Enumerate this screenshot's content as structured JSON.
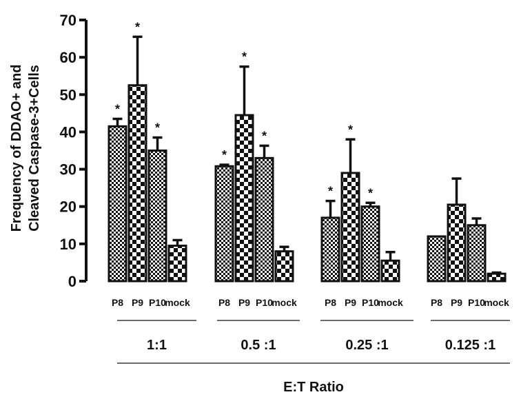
{
  "chart_data": {
    "type": "bar",
    "ylabel_line1": "Frequency of DDAO+ and",
    "ylabel_line2": "Cleaved Caspase-3+Cells",
    "xlabel": "E:T Ratio",
    "ylim": [
      0,
      70
    ],
    "yticks": [
      0,
      10,
      20,
      30,
      40,
      50,
      60,
      70
    ],
    "categories": [
      "P8",
      "P9",
      "P10",
      "mock"
    ],
    "groups": [
      {
        "label": "1:1",
        "bars": [
          {
            "category": "P8",
            "value": 41.5,
            "error": 2,
            "significant": true
          },
          {
            "category": "P9",
            "value": 52.5,
            "error": 13,
            "significant": true
          },
          {
            "category": "P10",
            "value": 35,
            "error": 3.5,
            "significant": true
          },
          {
            "category": "mock",
            "value": 9.5,
            "error": 1.5,
            "significant": false
          }
        ]
      },
      {
        "label": "0.5 :1",
        "bars": [
          {
            "category": "P8",
            "value": 30.8,
            "error": 0.4,
            "significant": true
          },
          {
            "category": "P9",
            "value": 44.5,
            "error": 13,
            "significant": true
          },
          {
            "category": "P10",
            "value": 33,
            "error": 3.3,
            "significant": true
          },
          {
            "category": "mock",
            "value": 8,
            "error": 1.2,
            "significant": false
          }
        ]
      },
      {
        "label": "0.25 :1",
        "bars": [
          {
            "category": "P8",
            "value": 17,
            "error": 4.5,
            "significant": true
          },
          {
            "category": "P9",
            "value": 29,
            "error": 9,
            "significant": true
          },
          {
            "category": "P10",
            "value": 20,
            "error": 1,
            "significant": true
          },
          {
            "category": "mock",
            "value": 5.5,
            "error": 2.3,
            "significant": false
          }
        ]
      },
      {
        "label": "0.125 :1",
        "bars": [
          {
            "category": "P8",
            "value": 12,
            "error": 0,
            "significant": false
          },
          {
            "category": "P9",
            "value": 20.5,
            "error": 7,
            "significant": false
          },
          {
            "category": "P10",
            "value": 15,
            "error": 1.8,
            "significant": false
          },
          {
            "category": "mock",
            "value": 2,
            "error": 0.3,
            "significant": false
          }
        ]
      }
    ],
    "significance_marker": "*",
    "patterns": {
      "P8": "fine-checker",
      "P9": "coarse-checker",
      "P10": "fine-checker",
      "mock": "coarse-checker"
    },
    "colors": {
      "bar_stroke": "#111111",
      "axis": "#111111"
    },
    "grid": false
  }
}
